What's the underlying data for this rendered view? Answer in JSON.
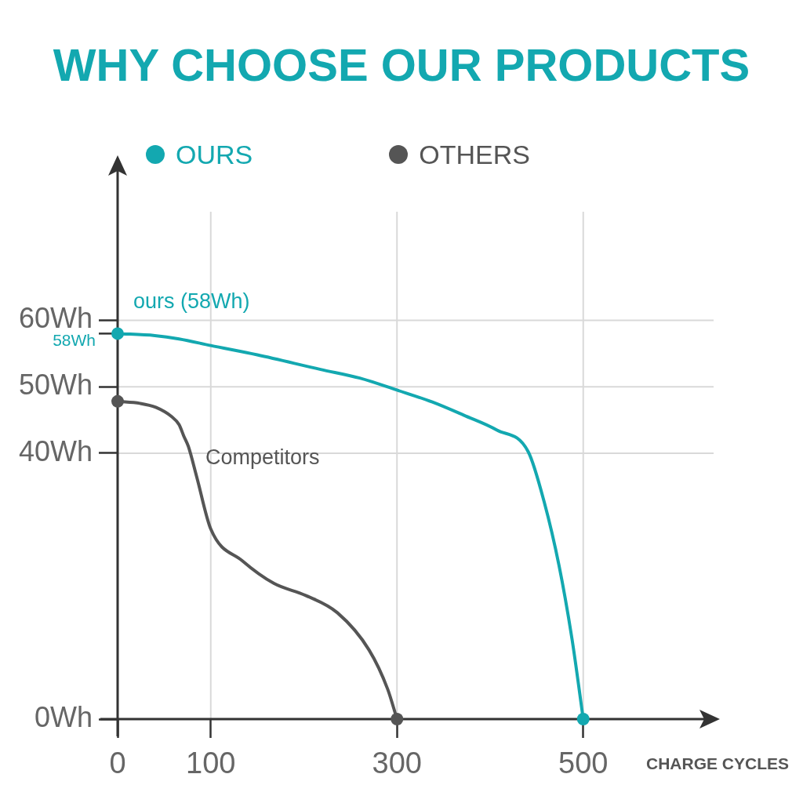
{
  "chart_data": {
    "type": "line",
    "title": "WHY CHOOSE OUR PRODUCTS",
    "xlabel": "CHARGE CYCLES",
    "series": [
      {
        "name": "OURS",
        "color": "#13a8b0",
        "x": [
          0,
          40,
          66,
          100,
          150,
          218,
          260,
          300,
          338,
          372,
          407,
          441,
          458,
          474,
          488,
          500
        ],
        "values": [
          58,
          57.7,
          57.2,
          56.2,
          54.8,
          52.6,
          51.3,
          49.5,
          47.7,
          45.7,
          43.5,
          40.2,
          32.7,
          23.1,
          12,
          0
        ]
      },
      {
        "name": "OTHERS",
        "color": "#555555",
        "x": [
          0,
          24,
          41,
          58,
          66,
          71,
          76,
          85,
          100,
          134,
          168,
          202,
          236,
          270,
          290,
          300
        ],
        "values": [
          47.8,
          47.5,
          46.9,
          45.5,
          44.3,
          42.6,
          41,
          36.4,
          28.6,
          23.8,
          20.4,
          18.6,
          16,
          10.4,
          4.5,
          0
        ]
      },
      {
        "type": "scatter",
        "marker": "circle",
        "color": "#13a8b0",
        "x": [
          0,
          500
        ],
        "values": [
          58,
          0
        ]
      },
      {
        "type": "scatter",
        "marker": "circle",
        "color": "#555555",
        "x": [
          0,
          300
        ],
        "values": [
          47.8,
          0
        ]
      }
    ],
    "xlim": [
      0,
      640
    ],
    "xticks": [
      0,
      100,
      300,
      500
    ],
    "ylim": [
      0,
      84
    ],
    "yticks": [
      {
        "value": 0,
        "label": "0Wh"
      },
      {
        "value": 40,
        "label": "40Wh"
      },
      {
        "value": 50,
        "label": "50Wh"
      },
      {
        "value": 60,
        "label": "60Wh"
      }
    ],
    "annotations": [
      {
        "text": "58Wh",
        "x": 0,
        "y": 58
      },
      "ours (58Wh)",
      "Competitors"
    ],
    "grid": true,
    "legend": "top"
  }
}
